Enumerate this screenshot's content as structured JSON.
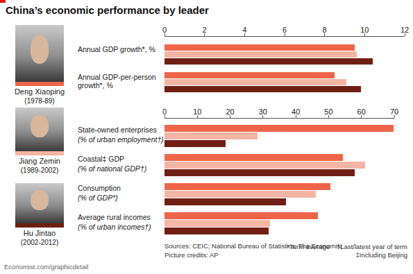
{
  "title": "China’s economic performance by leader",
  "chart_data": [
    {
      "type": "bar",
      "orientation": "horizontal",
      "grid": false,
      "categories": [
        "Annual GDP growth*, %",
        "Annual GDP-per-person growth*, %"
      ],
      "xlim": [
        0,
        12
      ],
      "xticks": [
        0,
        2,
        4,
        6,
        8,
        10,
        12
      ],
      "series": [
        {
          "name": "Deng Xiaoping",
          "period": "(1978-89)",
          "color": "#ef6549",
          "values": [
            9.5,
            8.5
          ]
        },
        {
          "name": "Jiang Zemin",
          "period": "(1989-2002)",
          "color": "#f5b5a4",
          "values": [
            9.6,
            9.1
          ]
        },
        {
          "name": "Hu Jintao",
          "period": "(2002-2012)",
          "color": "#6f1f13",
          "values": [
            10.4,
            9.8
          ]
        }
      ]
    },
    {
      "type": "bar",
      "orientation": "horizontal",
      "grid": false,
      "categories": [
        "State-owned enterprises",
        "Coastal‡ GDP",
        "Consumption",
        "Average rural incomes"
      ],
      "category_subtitles": [
        "(% of urban employment†)",
        "(% of national GDP†)",
        "(% of GDP*)",
        "(% of urban incomes†)"
      ],
      "xlim": [
        0,
        70
      ],
      "xticks": [
        0,
        10,
        20,
        30,
        40,
        50,
        60,
        70
      ],
      "series": [
        {
          "color": "#ef6549",
          "values": [
            69.7,
            54.3,
            50.5,
            46.7
          ]
        },
        {
          "color": "#f5b5a4",
          "values": [
            28.3,
            61.1,
            46,
            32.1
          ]
        },
        {
          "color": "#6f1f13",
          "values": [
            18.6,
            58,
            37,
            31.7
          ]
        }
      ]
    }
  ],
  "sources": "Sources: CEIC; National Bureau of Statistics; The Economist",
  "picture_credits": "Picture credits: AP",
  "footnotes": [
    "*Term average",
    "†Last/latest year of term",
    "‡Including Beijing"
  ],
  "website": "Economist.com/graphicdetail"
}
